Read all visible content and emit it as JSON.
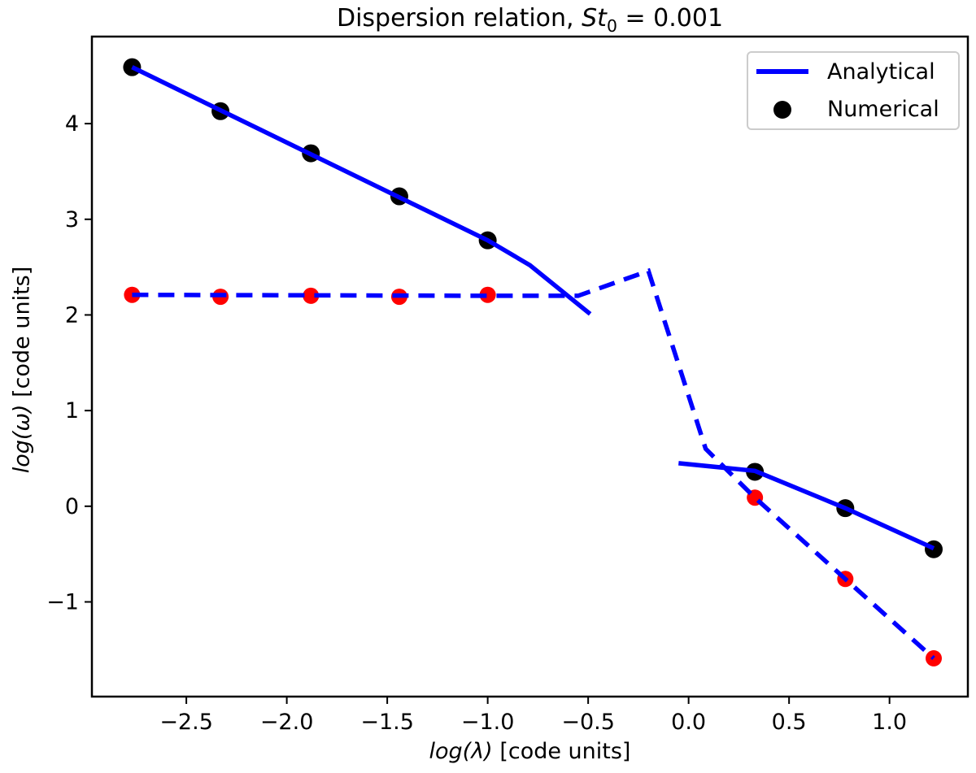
{
  "title": {
    "prefix": "Dispersion relation, ",
    "variable": "St",
    "subscript": "0",
    "equals_value": " = 0.001"
  },
  "xaxis": {
    "math": "log(λ)",
    "units": " [code units]"
  },
  "yaxis": {
    "math": "log(ω)",
    "units": " [code units]"
  },
  "legend": {
    "entries": [
      {
        "sample": "solid-blue-line",
        "label": "Analytical"
      },
      {
        "sample": "black-dot",
        "label": "Numerical"
      }
    ]
  },
  "chart_data": {
    "type": "line",
    "title": "Dispersion relation, St0 = 0.001",
    "xlabel": "log(λ) [code units]",
    "ylabel": "log(ω) [code units]",
    "xlim": [
      -2.97,
      1.39
    ],
    "ylim": [
      -1.99,
      4.91
    ],
    "xticks": [
      -2.5,
      -2.0,
      -1.5,
      -1.0,
      -0.5,
      0.0,
      0.5,
      1.0
    ],
    "xtick_labels": [
      "−2.5",
      "−2.0",
      "−1.5",
      "−1.0",
      "−0.5",
      "0.0",
      "0.5",
      "1.0"
    ],
    "yticks": [
      -1,
      0,
      1,
      2,
      3,
      4
    ],
    "ytick_labels": [
      "−1",
      "0",
      "1",
      "2",
      "3",
      "4"
    ],
    "grid": false,
    "legend_position": "upper right",
    "colors": {
      "axis": "#000000",
      "analytical_line": "#0000ff",
      "numerical_marker": "#000000",
      "secondary_marker": "#ff0000"
    },
    "series": [
      {
        "name": "numerical-mode1-black-dots",
        "legend_label": "Numerical",
        "role": "scatter",
        "color": "#000000",
        "radius": 11,
        "points": [
          [
            -2.77,
            4.59
          ],
          [
            -2.33,
            4.13
          ],
          [
            -1.88,
            3.69
          ],
          [
            -1.44,
            3.24
          ],
          [
            -1.0,
            2.78
          ],
          [
            0.33,
            0.36
          ],
          [
            0.78,
            -0.02
          ],
          [
            1.22,
            -0.45
          ]
        ]
      },
      {
        "name": "numerical-mode2-red-dots",
        "legend_label": null,
        "role": "scatter",
        "color": "#ff0000",
        "radius": 10,
        "points": [
          [
            -2.77,
            2.21
          ],
          [
            -2.33,
            2.19
          ],
          [
            -1.88,
            2.2
          ],
          [
            -1.44,
            2.19
          ],
          [
            -1.0,
            2.21
          ],
          [
            0.33,
            0.09
          ],
          [
            0.78,
            -0.76
          ],
          [
            1.22,
            -1.59
          ]
        ]
      },
      {
        "name": "analytical-solid-left-branch",
        "legend_label": "Analytical",
        "role": "line",
        "style": "solid",
        "color": "#0000ff",
        "points": [
          [
            -2.77,
            4.59
          ],
          [
            -1.0,
            2.78
          ],
          [
            -0.79,
            2.52
          ],
          [
            -0.49,
            2.01
          ]
        ]
      },
      {
        "name": "analytical-solid-right-branch",
        "legend_label": null,
        "role": "line",
        "style": "solid",
        "color": "#0000ff",
        "points": [
          [
            -0.05,
            0.45
          ],
          [
            0.33,
            0.37
          ],
          [
            0.78,
            -0.02
          ],
          [
            1.22,
            -0.44
          ]
        ]
      },
      {
        "name": "analytical-dashed-branch",
        "legend_label": null,
        "role": "line",
        "style": "dashed",
        "color": "#0000ff",
        "points": [
          [
            -2.77,
            2.21
          ],
          [
            -1.0,
            2.2
          ],
          [
            -0.55,
            2.2
          ],
          [
            -0.2,
            2.46
          ],
          [
            0.085,
            0.6
          ],
          [
            0.33,
            0.09
          ],
          [
            0.78,
            -0.76
          ],
          [
            1.22,
            -1.59
          ]
        ]
      }
    ]
  }
}
